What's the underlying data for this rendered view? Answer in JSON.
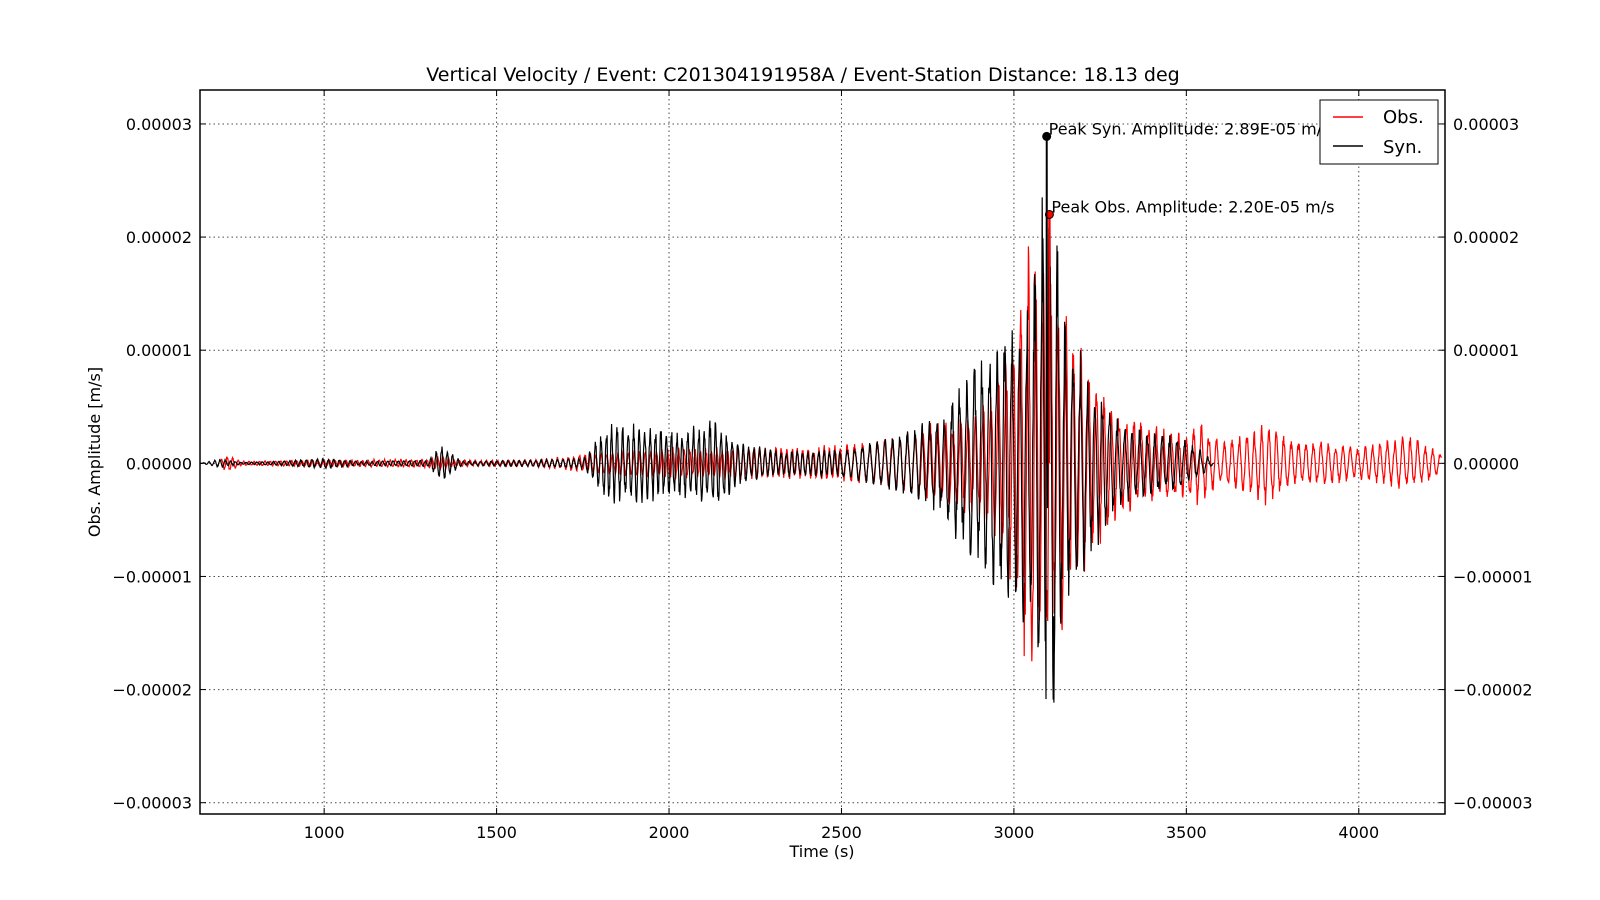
{
  "chart_data": {
    "type": "line",
    "title": "Vertical Velocity / Event: C201304191958A / Event-Station Distance: 18.13 deg",
    "xlabel": "Time (s)",
    "ylabel": "Obs. Amplitude [m/s]",
    "xlim": [
      640,
      4250
    ],
    "ylim": [
      -3.1e-05,
      3.3e-05
    ],
    "x_ticks": [
      1000,
      1500,
      2000,
      2500,
      3000,
      3500,
      4000
    ],
    "x_tick_labels": [
      "1000",
      "1500",
      "2000",
      "2500",
      "3000",
      "3500",
      "4000"
    ],
    "y_ticks": [
      -3e-05,
      -2e-05,
      -1e-05,
      0,
      1e-05,
      2e-05,
      3e-05
    ],
    "y_tick_labels": [
      "−0.00003",
      "−0.00002",
      "−0.00001",
      "0.00000",
      "0.00001",
      "0.00002",
      "0.00003"
    ],
    "right_y_tick_labels": [
      "−0.00003",
      "−0.00002",
      "−0.00001",
      "0.00000",
      "0.00001",
      "0.00002",
      "0.00003"
    ],
    "grid": true,
    "legend_position": "top-right",
    "series": [
      {
        "name": "Obs.",
        "color": "#ff0000",
        "x_start": 700,
        "x_end": 4240,
        "envelope": [
          [
            700,
            4e-07
          ],
          [
            720,
            8e-07
          ],
          [
            760,
            2e-07
          ],
          [
            1000,
            3e-07
          ],
          [
            1300,
            4e-07
          ],
          [
            1340,
            7e-07
          ],
          [
            1380,
            3e-07
          ],
          [
            1600,
            3e-07
          ],
          [
            1800,
            1e-06
          ],
          [
            2000,
            1.5e-06
          ],
          [
            2200,
            1.5e-06
          ],
          [
            2400,
            1.5e-06
          ],
          [
            2600,
            2e-06
          ],
          [
            2700,
            3e-06
          ],
          [
            2800,
            4e-06
          ],
          [
            2900,
            5e-06
          ],
          [
            2960,
            8e-06
          ],
          [
            3000,
            1.3e-05
          ],
          [
            3040,
            2e-05
          ],
          [
            3100,
            1.9e-05
          ],
          [
            3150,
            1.5e-05
          ],
          [
            3200,
            1e-05
          ],
          [
            3300,
            5e-06
          ],
          [
            3400,
            3.5e-06
          ],
          [
            3500,
            3e-06
          ],
          [
            3530,
            4e-06
          ],
          [
            3600,
            2e-06
          ],
          [
            3700,
            3e-06
          ],
          [
            3730,
            4e-06
          ],
          [
            3800,
            2e-06
          ],
          [
            3900,
            2e-06
          ],
          [
            4000,
            1.5e-06
          ],
          [
            4150,
            2.5e-06
          ],
          [
            4240,
            1e-06
          ]
        ],
        "peak": {
          "x": 3103,
          "y": 2.2e-05
        }
      },
      {
        "name": "Syn.",
        "color": "#000000",
        "x_start": 640,
        "x_end": 3580,
        "envelope": [
          [
            640,
            0
          ],
          [
            700,
            4e-07
          ],
          [
            760,
            1e-07
          ],
          [
            880,
            2e-07
          ],
          [
            1000,
            5e-07
          ],
          [
            1100,
            2e-07
          ],
          [
            1300,
            3e-07
          ],
          [
            1340,
            1.7e-06
          ],
          [
            1360,
            1.2e-06
          ],
          [
            1400,
            2e-07
          ],
          [
            1600,
            3e-07
          ],
          [
            1750,
            5e-07
          ],
          [
            1800,
            2.5e-06
          ],
          [
            1820,
            3.5e-06
          ],
          [
            1900,
            3.8e-06
          ],
          [
            2000,
            3e-06
          ],
          [
            2100,
            3.5e-06
          ],
          [
            2130,
            4.5e-06
          ],
          [
            2200,
            2e-06
          ],
          [
            2300,
            1.2e-06
          ],
          [
            2500,
            1.3e-06
          ],
          [
            2600,
            2e-06
          ],
          [
            2700,
            3e-06
          ],
          [
            2800,
            5e-06
          ],
          [
            2850,
            8e-06
          ],
          [
            2900,
            1e-05
          ],
          [
            2950,
            1.2e-05
          ],
          [
            3000,
            1.3e-05
          ],
          [
            3050,
            1.6e-05
          ],
          [
            3090,
            2.75e-05
          ],
          [
            3110,
            2.5e-05
          ],
          [
            3150,
            1.3e-05
          ],
          [
            3180,
            1.1e-05
          ],
          [
            3250,
            7e-06
          ],
          [
            3300,
            4e-06
          ],
          [
            3400,
            3e-06
          ],
          [
            3480,
            2.5e-06
          ],
          [
            3550,
            1e-06
          ],
          [
            3580,
            0
          ]
        ],
        "peak": {
          "x": 3095,
          "y": 2.89e-05
        }
      }
    ],
    "annotations": [
      {
        "text": "Peak Syn. Amplitude: 2.89E-05 m/s",
        "x": 3095,
        "y": 2.89e-05
      },
      {
        "text": "Peak Obs. Amplitude: 2.20E-05 m/s",
        "x": 3103,
        "y": 2.2e-05
      }
    ]
  }
}
